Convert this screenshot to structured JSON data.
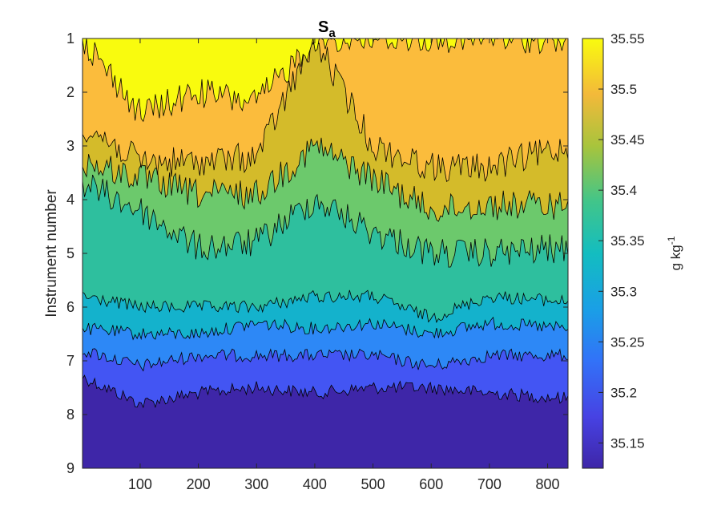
{
  "chart_data": {
    "type": "heatmap",
    "subtype": "filled-contour",
    "title": "S",
    "title_subscript": "a",
    "xlabel": "",
    "ylabel": "Instrument number",
    "xlim": [
      1,
      835
    ],
    "ylim": [
      1,
      9
    ],
    "y_reversed": true,
    "x_ticks": [
      100,
      200,
      300,
      400,
      500,
      600,
      700,
      800
    ],
    "x_tick_labels": [
      "100",
      "200",
      "300",
      "400",
      "500",
      "600",
      "700",
      "800"
    ],
    "y_ticks": [
      1,
      2,
      3,
      4,
      5,
      6,
      7,
      8,
      9
    ],
    "y_tick_labels": [
      "1",
      "2",
      "3",
      "4",
      "5",
      "6",
      "7",
      "8",
      "9"
    ],
    "colorbar": {
      "label": "g kg",
      "label_superscript": "-1",
      "clim": [
        35.125,
        35.55
      ],
      "ticks": [
        35.15,
        35.2,
        35.25,
        35.3,
        35.35,
        35.4,
        35.45,
        35.5,
        35.55
      ],
      "tick_labels": [
        "35.15",
        "35.2",
        "35.25",
        "35.3",
        "35.35",
        "35.4",
        "35.45",
        "35.5",
        "35.55"
      ],
      "colormap": "parula"
    },
    "contour_levels": [
      35.15,
      35.2,
      35.25,
      35.3,
      35.35,
      35.4,
      35.45,
      35.5
    ],
    "level_colors": [
      "#3e26a8",
      "#4355f3",
      "#2d88f6",
      "#14b2cc",
      "#2ebf9e",
      "#6cc96c",
      "#d4bb2a",
      "#fbbc3c",
      "#f9fb0e"
    ],
    "boundaries": [
      {
        "level": 35.5,
        "x": [
          1,
          100,
          200,
          300,
          400,
          500,
          600,
          700,
          835
        ],
        "y": [
          1.0,
          2.4,
          2.0,
          2.2,
          1.0,
          1.0,
          1.0,
          1.0,
          1.0
        ]
      },
      {
        "level": 35.45,
        "x": [
          1,
          100,
          200,
          300,
          400,
          500,
          600,
          700,
          835
        ],
        "y": [
          2.6,
          3.3,
          3.3,
          3.2,
          1.0,
          3.0,
          3.4,
          3.4,
          3.0
        ]
      },
      {
        "level": 35.4,
        "x": [
          1,
          100,
          200,
          300,
          400,
          500,
          600,
          700,
          835
        ],
        "y": [
          3.3,
          3.6,
          3.9,
          3.9,
          3.0,
          3.6,
          4.2,
          4.1,
          4.1
        ]
      },
      {
        "level": 35.35,
        "x": [
          1,
          100,
          200,
          300,
          400,
          500,
          600,
          700,
          835
        ],
        "y": [
          3.7,
          4.2,
          4.9,
          4.8,
          4.0,
          4.6,
          5.0,
          5.0,
          4.9
        ]
      },
      {
        "level": 35.3,
        "x": [
          1,
          100,
          200,
          300,
          400,
          500,
          600,
          700,
          835
        ],
        "y": [
          5.8,
          6.0,
          6.0,
          6.0,
          5.8,
          5.8,
          6.2,
          5.8,
          5.9
        ]
      },
      {
        "level": 35.25,
        "x": [
          1,
          100,
          200,
          300,
          400,
          500,
          600,
          700,
          835
        ],
        "y": [
          6.4,
          6.5,
          6.5,
          6.3,
          6.4,
          6.3,
          6.5,
          6.3,
          6.4
        ]
      },
      {
        "level": 35.2,
        "x": [
          1,
          100,
          200,
          300,
          400,
          500,
          600,
          700,
          835
        ],
        "y": [
          6.8,
          7.1,
          6.9,
          6.9,
          6.9,
          6.9,
          7.1,
          6.9,
          6.9
        ]
      },
      {
        "level": 35.15,
        "x": [
          1,
          100,
          200,
          300,
          400,
          500,
          600,
          700,
          835
        ],
        "y": [
          7.3,
          7.8,
          7.6,
          7.5,
          7.6,
          7.5,
          7.5,
          7.6,
          7.7
        ]
      }
    ]
  }
}
